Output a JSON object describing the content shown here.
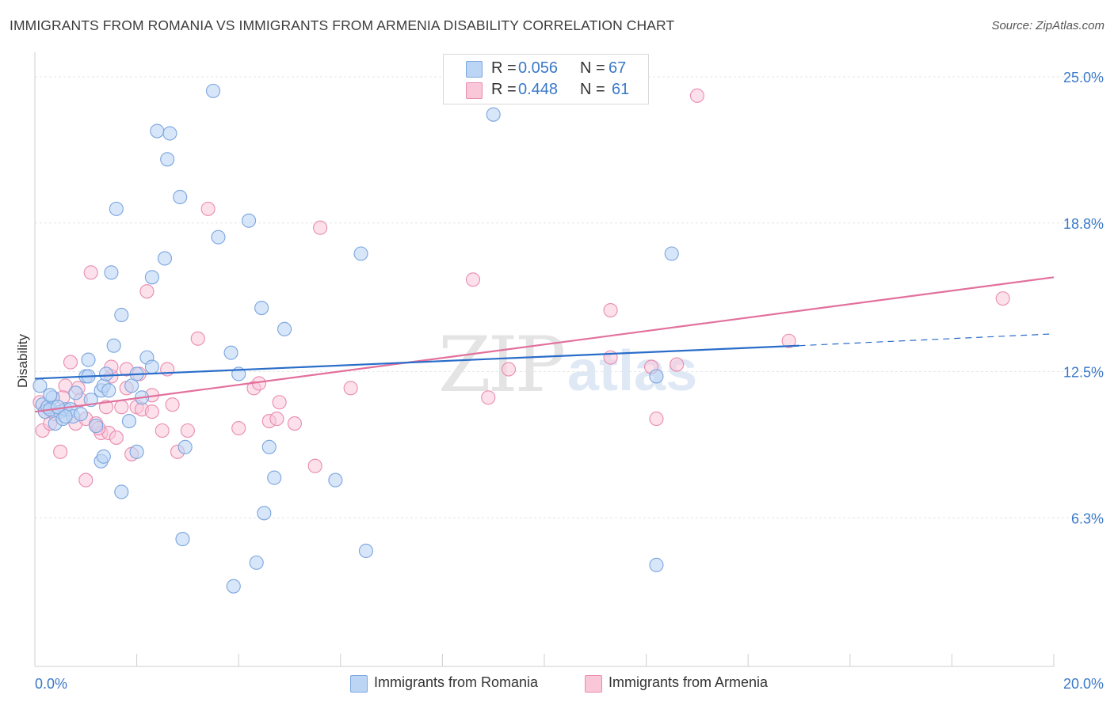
{
  "header": {
    "title": "IMMIGRANTS FROM ROMANIA VS IMMIGRANTS FROM ARMENIA DISABILITY CORRELATION CHART",
    "source": "Source: ZipAtlas.com"
  },
  "watermark": {
    "zip": "ZIP",
    "atlas": "atlas"
  },
  "legend": {
    "rows": [
      {
        "r_label": "R =",
        "r_value": "0.056",
        "n_label": "N =",
        "n_value": "67"
      },
      {
        "r_label": "R =",
        "r_value": "0.448",
        "n_label": "N =",
        "n_value": "61"
      }
    ]
  },
  "bottom_legend": {
    "romania": "Immigrants from Romania",
    "armenia": "Immigrants from Armenia"
  },
  "colors": {
    "romania_fill": "#bcd5f5",
    "romania_stroke": "#7ba5de",
    "romania_line": "#2a6dc9",
    "armenia_fill": "#f9c7d8",
    "armenia_stroke": "#e98bb0",
    "armenia_line": "#e2709c",
    "axis_text": "#3a78c9"
  },
  "chart_data": {
    "type": "scatter",
    "title": "IMMIGRANTS FROM ROMANIA VS IMMIGRANTS FROM ARMENIA DISABILITY CORRELATION CHART",
    "xlabel": "",
    "ylabel": "Disability",
    "xlim": [
      0,
      20
    ],
    "ylim": [
      0,
      26
    ],
    "x_tick_labels": [
      "0.0%",
      "20.0%"
    ],
    "y_ticks": [
      6.3,
      12.5,
      18.8,
      25.0
    ],
    "y_tick_labels": [
      "6.3%",
      "12.5%",
      "18.8%",
      "25.0%"
    ],
    "grid": true,
    "legend_position": "top-center",
    "series": [
      {
        "name": "Immigrants from Romania",
        "trend": {
          "x": [
            0,
            15
          ],
          "y": [
            12.2,
            13.6
          ],
          "dashed_to": [
            20,
            14.1
          ]
        },
        "points": [
          [
            0.1,
            11.9
          ],
          [
            0.15,
            11.1
          ],
          [
            0.2,
            10.8
          ],
          [
            0.25,
            11.0
          ],
          [
            0.3,
            10.9
          ],
          [
            0.35,
            11.4
          ],
          [
            0.4,
            10.3
          ],
          [
            0.5,
            10.8
          ],
          [
            0.55,
            10.5
          ],
          [
            0.6,
            10.9
          ],
          [
            0.7,
            10.9
          ],
          [
            0.75,
            10.6
          ],
          [
            0.8,
            11.6
          ],
          [
            0.9,
            10.7
          ],
          [
            1.0,
            12.3
          ],
          [
            1.05,
            13.0
          ],
          [
            1.1,
            11.3
          ],
          [
            1.2,
            10.2
          ],
          [
            1.3,
            11.7
          ],
          [
            1.35,
            11.9
          ],
          [
            1.4,
            12.4
          ],
          [
            1.55,
            13.6
          ],
          [
            1.7,
            14.9
          ],
          [
            1.85,
            10.4
          ],
          [
            1.9,
            11.9
          ],
          [
            2.1,
            11.4
          ],
          [
            2.0,
            12.4
          ],
          [
            2.2,
            13.1
          ],
          [
            2.3,
            12.7
          ],
          [
            2.6,
            21.5
          ],
          [
            2.0,
            9.1
          ],
          [
            1.6,
            19.4
          ],
          [
            1.5,
            16.7
          ],
          [
            2.3,
            16.5
          ],
          [
            2.55,
            17.3
          ],
          [
            2.4,
            22.7
          ],
          [
            2.65,
            22.6
          ],
          [
            2.85,
            19.9
          ],
          [
            3.5,
            24.4
          ],
          [
            3.6,
            18.2
          ],
          [
            3.85,
            13.3
          ],
          [
            4.0,
            12.4
          ],
          [
            4.2,
            18.9
          ],
          [
            4.45,
            15.2
          ],
          [
            4.9,
            14.3
          ],
          [
            4.6,
            9.3
          ],
          [
            4.7,
            8.0
          ],
          [
            4.5,
            6.5
          ],
          [
            4.35,
            4.4
          ],
          [
            3.9,
            3.4
          ],
          [
            2.95,
            9.3
          ],
          [
            2.9,
            5.4
          ],
          [
            1.7,
            7.4
          ],
          [
            1.3,
            8.7
          ],
          [
            5.9,
            7.9
          ],
          [
            6.5,
            4.9
          ],
          [
            6.4,
            17.5
          ],
          [
            9.0,
            23.4
          ],
          [
            12.2,
            12.3
          ],
          [
            12.5,
            17.5
          ],
          [
            12.2,
            4.3
          ],
          [
            1.35,
            8.9
          ],
          [
            0.3,
            11.5
          ],
          [
            0.45,
            11.0
          ],
          [
            1.05,
            12.3
          ],
          [
            1.45,
            11.7
          ],
          [
            0.6,
            10.6
          ]
        ]
      },
      {
        "name": "Immigrants from Armenia",
        "trend": {
          "x": [
            0,
            20
          ],
          "y": [
            10.8,
            16.5
          ]
        },
        "points": [
          [
            0.1,
            11.2
          ],
          [
            0.15,
            10.0
          ],
          [
            0.2,
            10.8
          ],
          [
            0.3,
            10.3
          ],
          [
            0.4,
            10.7
          ],
          [
            0.5,
            9.1
          ],
          [
            0.6,
            11.9
          ],
          [
            0.7,
            12.9
          ],
          [
            0.8,
            10.3
          ],
          [
            0.85,
            11.8
          ],
          [
            0.9,
            11.3
          ],
          [
            1.0,
            7.9
          ],
          [
            1.0,
            10.5
          ],
          [
            1.1,
            16.7
          ],
          [
            1.2,
            10.3
          ],
          [
            1.3,
            9.9
          ],
          [
            1.4,
            11.0
          ],
          [
            1.45,
            9.9
          ],
          [
            1.5,
            12.3
          ],
          [
            1.5,
            12.7
          ],
          [
            1.6,
            9.7
          ],
          [
            1.7,
            11.0
          ],
          [
            1.8,
            12.6
          ],
          [
            1.9,
            9.0
          ],
          [
            2.0,
            11.0
          ],
          [
            2.1,
            10.9
          ],
          [
            2.2,
            15.9
          ],
          [
            2.3,
            10.8
          ],
          [
            2.5,
            10.0
          ],
          [
            2.6,
            12.6
          ],
          [
            2.7,
            11.1
          ],
          [
            2.8,
            9.1
          ],
          [
            3.0,
            10.0
          ],
          [
            3.2,
            13.9
          ],
          [
            3.4,
            19.4
          ],
          [
            4.0,
            10.1
          ],
          [
            4.3,
            11.8
          ],
          [
            4.4,
            12.0
          ],
          [
            4.6,
            10.4
          ],
          [
            4.75,
            10.5
          ],
          [
            4.8,
            11.2
          ],
          [
            5.1,
            10.3
          ],
          [
            5.5,
            8.5
          ],
          [
            5.6,
            18.6
          ],
          [
            6.2,
            11.8
          ],
          [
            8.6,
            16.4
          ],
          [
            8.9,
            11.4
          ],
          [
            9.3,
            12.6
          ],
          [
            11.3,
            15.1
          ],
          [
            11.3,
            13.1
          ],
          [
            12.1,
            12.7
          ],
          [
            12.2,
            10.5
          ],
          [
            12.6,
            12.8
          ],
          [
            13.0,
            24.2
          ],
          [
            14.8,
            13.8
          ],
          [
            19.0,
            15.6
          ],
          [
            2.3,
            11.5
          ],
          [
            1.8,
            11.8
          ],
          [
            0.55,
            11.4
          ],
          [
            2.05,
            12.4
          ],
          [
            1.25,
            10.1
          ]
        ]
      }
    ]
  }
}
